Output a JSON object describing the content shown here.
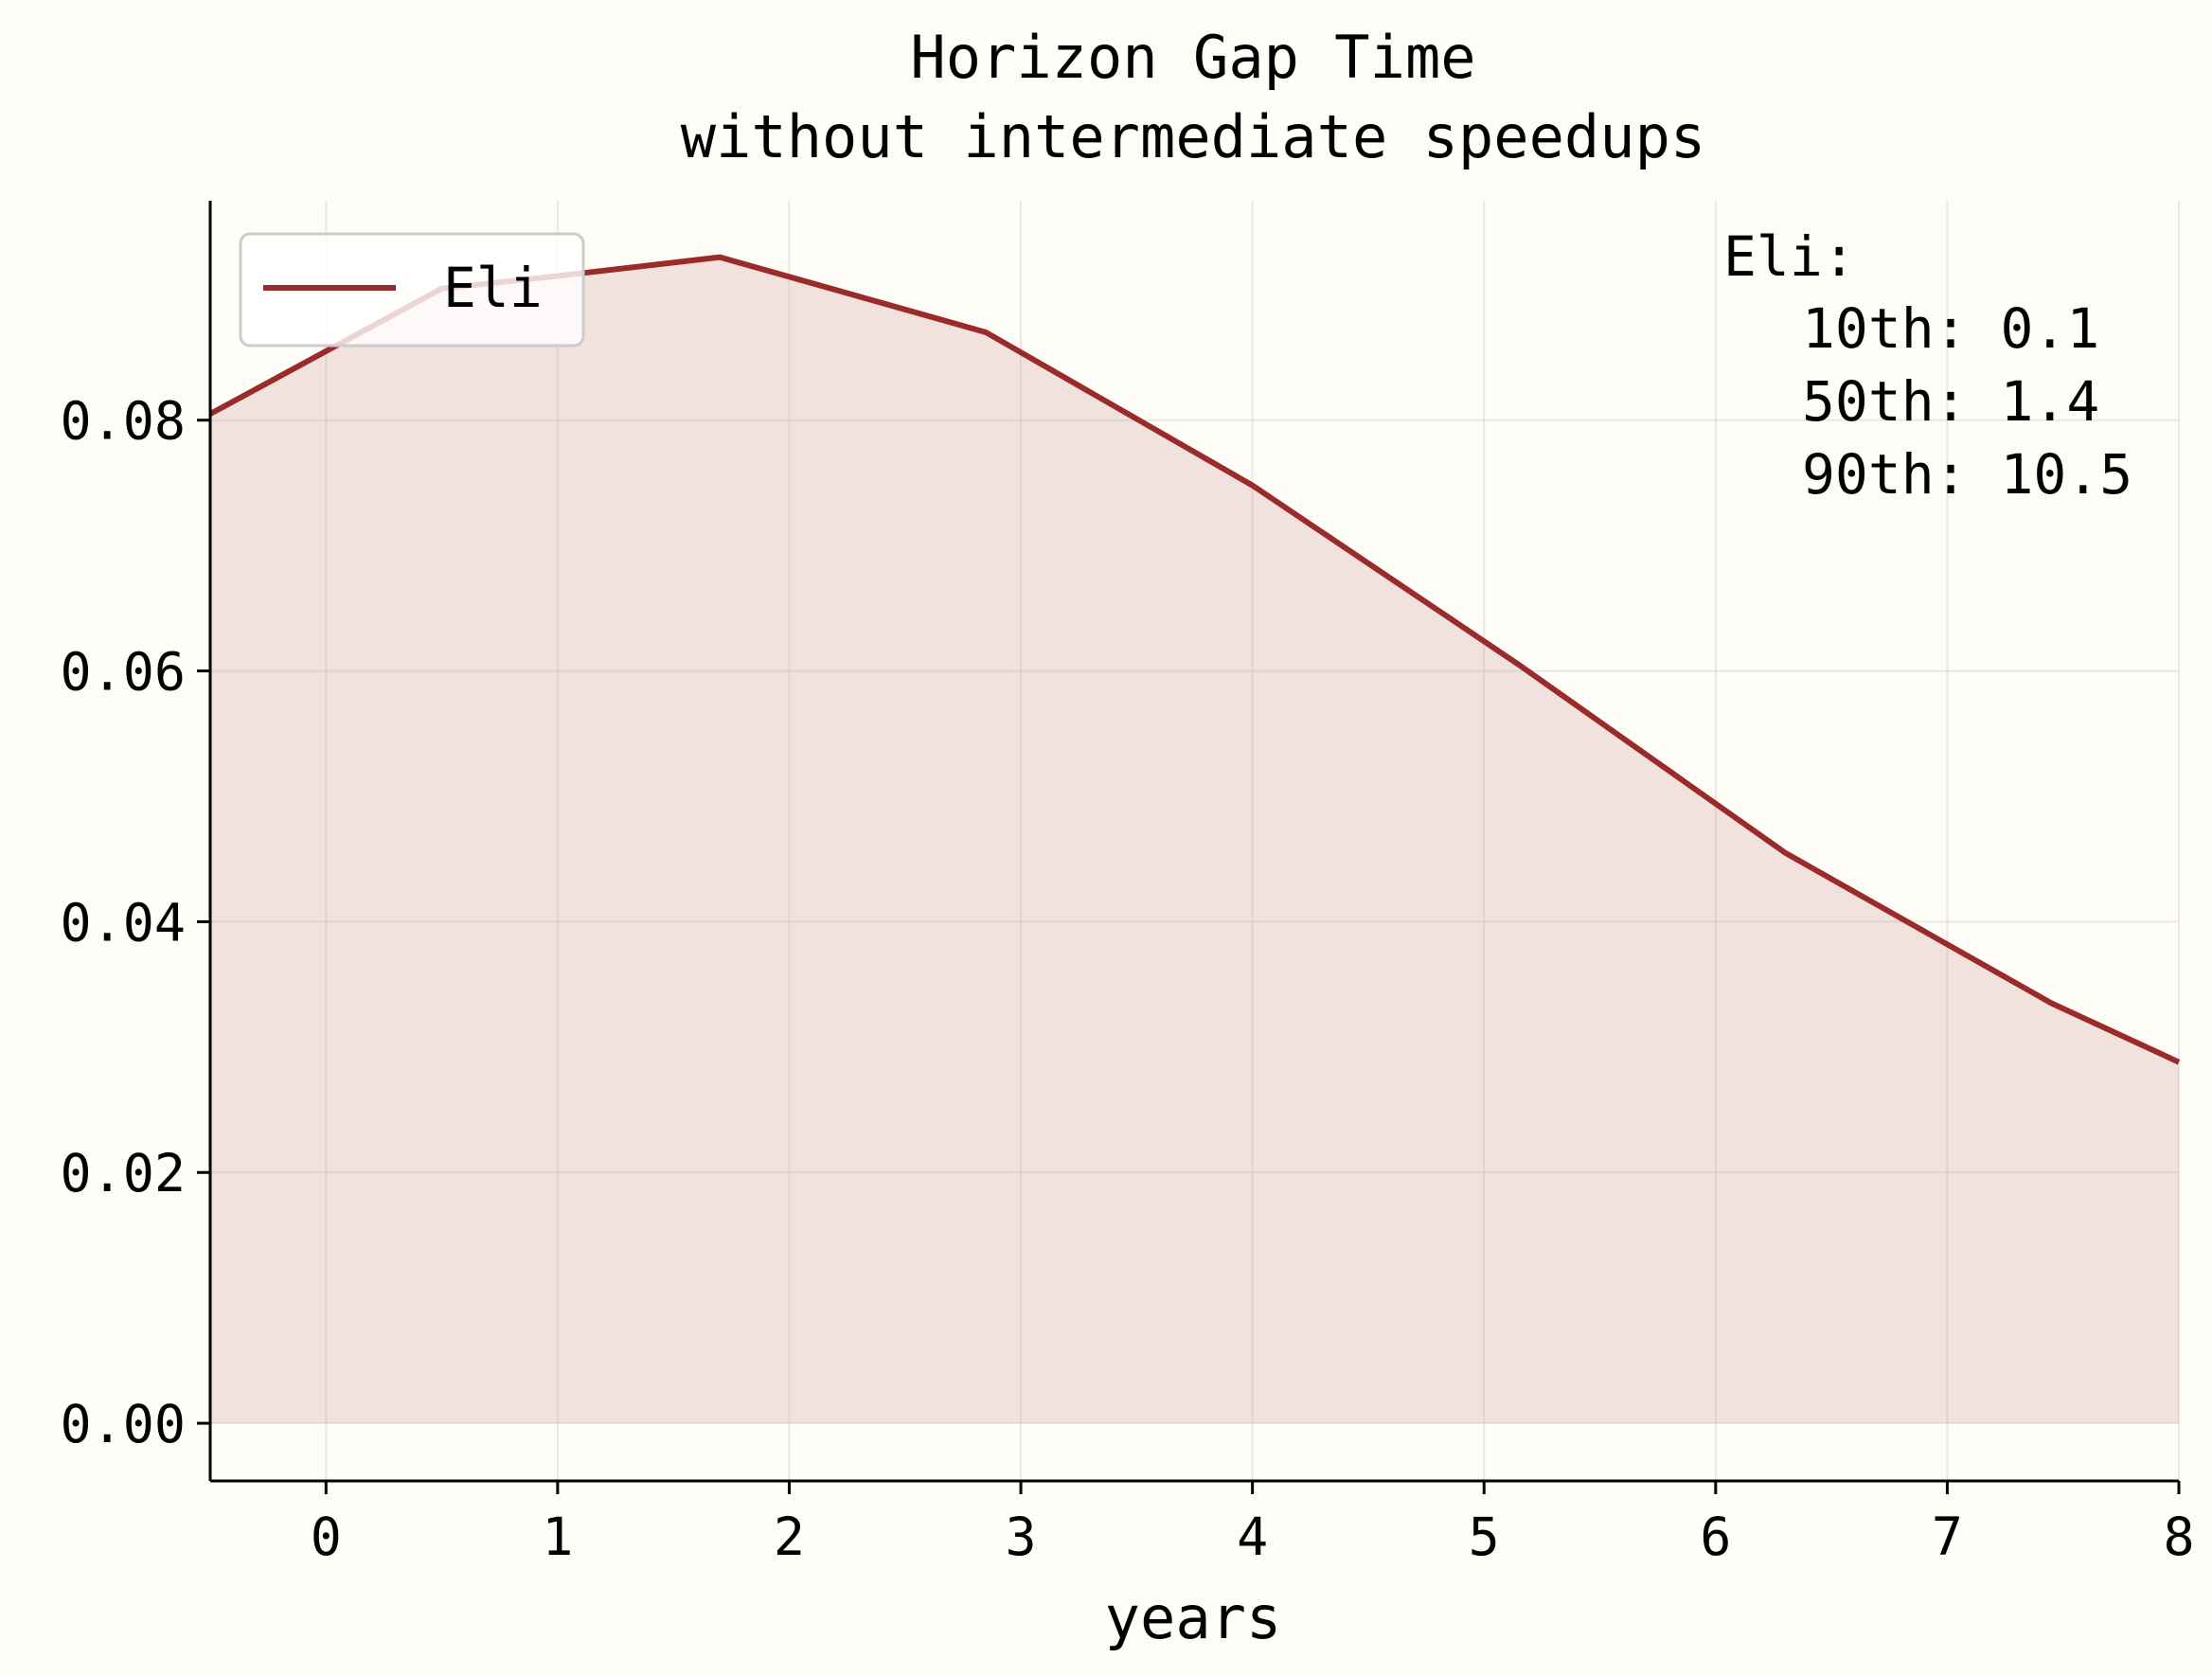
{
  "chart_data": {
    "type": "area",
    "title": [
      "Horizon Gap Time",
      "without intermediate speedups"
    ],
    "xlabel": "years",
    "ylabel": "",
    "xlim": [
      -0.5,
      8
    ],
    "ylim": [
      -0.0046,
      0.0975
    ],
    "xticks": [
      "0",
      "1",
      "2",
      "3",
      "4",
      "5",
      "6",
      "7",
      "8"
    ],
    "yticks": [
      "0.00",
      "0.02",
      "0.04",
      "0.06",
      "0.08"
    ],
    "grid": true,
    "legend_position": "top-left",
    "series": [
      {
        "name": "Eli",
        "color": "#9b2a2a",
        "fill_color": "#f2e2dd",
        "x": [
          -0.5,
          0,
          0.5,
          1.0,
          1.7,
          2.85,
          4.0,
          5.15,
          6.3,
          7.45,
          8.0
        ],
        "y": [
          0.0805,
          0.0855,
          0.0905,
          0.0915,
          0.093,
          0.087,
          0.0748,
          0.0605,
          0.0455,
          0.0335,
          0.0288
        ]
      }
    ],
    "annotation": {
      "header": "Eli:",
      "lines": [
        "10th: 0.1",
        "50th: 1.4",
        "90th: 10.5"
      ]
    }
  }
}
